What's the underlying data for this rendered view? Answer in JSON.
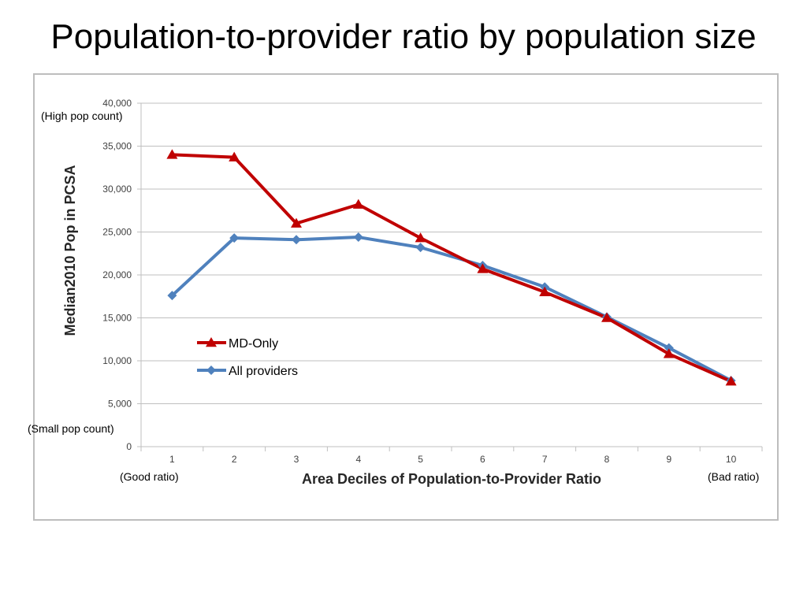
{
  "title": "Population-to-provider ratio by population size",
  "annotations": {
    "high_pop": "(High pop count)",
    "small_pop": "(Small pop count)",
    "good_ratio": "(Good ratio)",
    "bad_ratio": "(Bad ratio)"
  },
  "colors": {
    "md_only": "#c00000",
    "all_providers": "#4f81bd",
    "grid": "#bfbfbf"
  },
  "chart_data": {
    "type": "line",
    "xlabel": "Area Deciles of Population-to-Provider Ratio",
    "ylabel": "Median2010 Pop in PCSA",
    "categories": [
      "1",
      "2",
      "3",
      "4",
      "5",
      "6",
      "7",
      "8",
      "9",
      "10"
    ],
    "ylim": [
      0,
      40000
    ],
    "yticks": [
      0,
      5000,
      10000,
      15000,
      20000,
      25000,
      30000,
      35000,
      40000
    ],
    "ytick_labels": [
      "0",
      "5,000",
      "10,000",
      "15,000",
      "20,000",
      "25,000",
      "30,000",
      "35,000",
      "40,000"
    ],
    "grid": true,
    "legend_position": "center-left",
    "series": [
      {
        "name": "MD-Only",
        "marker": "triangle",
        "values": [
          34000,
          33700,
          26000,
          28200,
          24300,
          20700,
          18000,
          15000,
          10800,
          7600
        ]
      },
      {
        "name": "All providers",
        "marker": "diamond",
        "values": [
          17600,
          24300,
          24100,
          24400,
          23200,
          21100,
          18600,
          15100,
          11500,
          7700
        ]
      }
    ]
  }
}
